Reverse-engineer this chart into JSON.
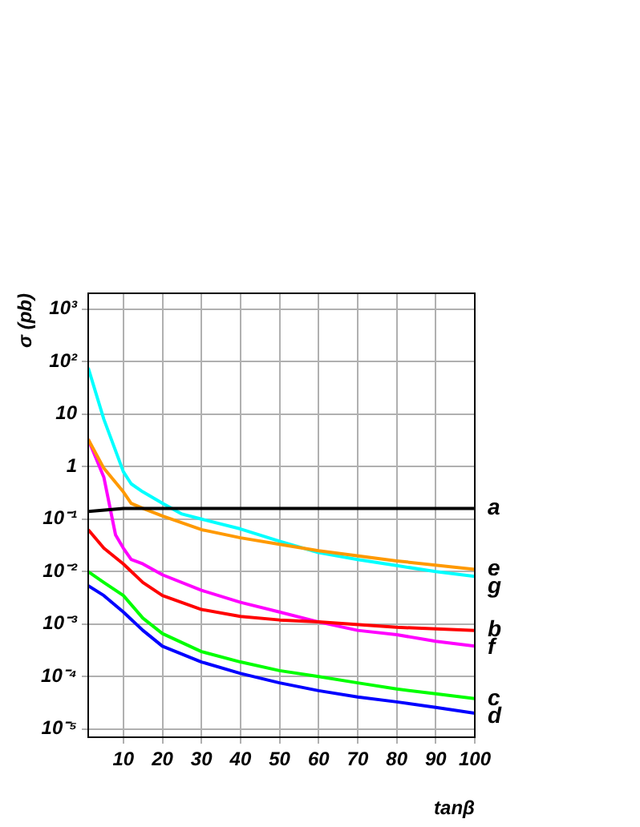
{
  "chart_data": {
    "type": "line",
    "xlabel": "tanβ",
    "ylabel": "σ (pb)",
    "log": "y",
    "grid": true,
    "legend": false,
    "marker": "none",
    "line_style": "solid",
    "xlim": [
      1,
      100
    ],
    "xticks": [
      10,
      20,
      30,
      40,
      50,
      60,
      70,
      80,
      90,
      100
    ],
    "ylim": [
      7e-06,
      2000
    ],
    "yticks": [
      {
        "value": 1000,
        "label": "10³"
      },
      {
        "value": 100,
        "label": "10²"
      },
      10,
      1,
      {
        "value": 0.1,
        "label": "10⁻¹"
      },
      {
        "value": 0.01,
        "label": "10⁻²"
      },
      {
        "value": 0.001,
        "label": "10⁻³"
      },
      {
        "value": 0.0001,
        "label": "10⁻⁴"
      },
      {
        "value": 1e-05,
        "label": "10⁻⁵"
      }
    ],
    "series": [
      {
        "name": "a",
        "color": "#000000",
        "x": [
          1,
          10,
          20,
          40,
          60,
          80,
          100
        ],
        "values": [
          0.14,
          0.16,
          0.16,
          0.16,
          0.16,
          0.16,
          0.16
        ]
      },
      {
        "name": "b",
        "color": "#ff0000",
        "x": [
          1,
          5,
          10,
          15,
          20,
          30,
          40,
          50,
          60,
          80,
          100
        ],
        "values": [
          0.063,
          0.028,
          0.014,
          0.0062,
          0.0035,
          0.0019,
          0.0014,
          0.0012,
          0.0011,
          0.00087,
          0.00076
        ]
      },
      {
        "name": "c",
        "color": "#00ff00",
        "x": [
          1,
          5,
          10,
          15,
          20,
          30,
          40,
          50,
          60,
          70,
          80,
          90,
          100
        ],
        "values": [
          0.01,
          0.0062,
          0.0035,
          0.0013,
          0.00066,
          0.0003,
          0.00019,
          0.00013,
          0.0001,
          7.6e-05,
          5.8e-05,
          4.7e-05,
          3.8e-05
        ]
      },
      {
        "name": "d",
        "color": "#0000ff",
        "x": [
          1,
          5,
          10,
          15,
          20,
          30,
          40,
          50,
          60,
          70,
          80,
          90,
          100
        ],
        "values": [
          0.0054,
          0.0035,
          0.0017,
          0.00076,
          0.00038,
          0.00019,
          0.000115,
          7.6e-05,
          5.4e-05,
          4.1e-05,
          3.3e-05,
          2.6e-05,
          2e-05
        ]
      },
      {
        "name": "e",
        "color": "#ff9900",
        "x": [
          1,
          5,
          10,
          12,
          15,
          20,
          30,
          40,
          50,
          60,
          80,
          100
        ],
        "values": [
          3.3,
          0.93,
          0.33,
          0.2,
          0.16,
          0.115,
          0.063,
          0.044,
          0.033,
          0.025,
          0.016,
          0.011
        ]
      },
      {
        "name": "f",
        "color": "#ff00ff",
        "x": [
          1,
          5,
          8,
          10,
          12,
          15,
          20,
          30,
          40,
          50,
          60,
          70,
          80,
          90,
          100
        ],
        "values": [
          3.3,
          0.63,
          0.05,
          0.028,
          0.017,
          0.014,
          0.0087,
          0.0044,
          0.0026,
          0.0017,
          0.0011,
          0.00076,
          0.00063,
          0.00047,
          0.00038
        ]
      },
      {
        "name": "g",
        "color": "#00ffff",
        "x": [
          1,
          5,
          10,
          12,
          15,
          20,
          25,
          30,
          40,
          50,
          60,
          70,
          80,
          90,
          100
        ],
        "values": [
          76,
          8,
          0.8,
          0.47,
          0.33,
          0.2,
          0.125,
          0.1,
          0.065,
          0.038,
          0.023,
          0.017,
          0.013,
          0.01,
          0.0081
        ]
      }
    ]
  }
}
